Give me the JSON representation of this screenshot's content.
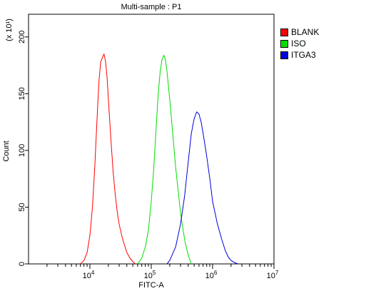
{
  "chart_data": {
    "type": "line",
    "title": "Multi-sample : P1",
    "xlabel": "FITC-A",
    "ylabel": "Count",
    "y_multiplier": "(x 10¹)",
    "x_scale": "log",
    "xlim": [
      1000,
      10000000
    ],
    "ylim": [
      0,
      220
    ],
    "x_ticks": [
      10000,
      100000,
      1000000,
      10000000
    ],
    "x_tick_labels": [
      {
        "base": "10",
        "exp": "4"
      },
      {
        "base": "10",
        "exp": "5"
      },
      {
        "base": "10",
        "exp": "6"
      },
      {
        "base": "10",
        "exp": "7"
      }
    ],
    "y_ticks": [
      0,
      50,
      100,
      150,
      200
    ],
    "y_tick_labels": [
      "0",
      "50",
      "100",
      "150",
      "200"
    ],
    "legend_position": "top-right",
    "series": [
      {
        "name": "BLANK",
        "color": "#ff0000",
        "x": [
          7000,
          8000,
          9000,
          10000,
          11000,
          12000,
          13000,
          14000,
          15000,
          16000,
          17000,
          18000,
          19000,
          20000,
          22000,
          24000,
          26000,
          28000,
          30000,
          33000,
          36000,
          40000,
          45000,
          50000,
          55000
        ],
        "y": [
          0,
          3,
          10,
          25,
          50,
          85,
          125,
          160,
          178,
          182,
          185,
          178,
          165,
          145,
          110,
          80,
          60,
          45,
          35,
          25,
          18,
          10,
          5,
          2,
          0
        ]
      },
      {
        "name": "ISO",
        "color": "#00dd00",
        "x": [
          60000,
          70000,
          80000,
          90000,
          100000,
          110000,
          120000,
          130000,
          140000,
          150000,
          160000,
          170000,
          180000,
          200000,
          220000,
          250000,
          280000,
          300000,
          330000,
          360000,
          400000,
          450000
        ],
        "y": [
          0,
          5,
          15,
          30,
          55,
          85,
          120,
          150,
          170,
          180,
          184,
          180,
          170,
          145,
          120,
          85,
          60,
          45,
          30,
          18,
          8,
          0
        ]
      },
      {
        "name": "ITGA3",
        "color": "#0000dd",
        "x": [
          180000,
          200000,
          250000,
          300000,
          350000,
          400000,
          450000,
          500000,
          550000,
          600000,
          650000,
          700000,
          800000,
          900000,
          1000000,
          1200000,
          1400000,
          1600000,
          1800000,
          2000000,
          2300000,
          2600000
        ],
        "y": [
          0,
          3,
          15,
          35,
          60,
          90,
          115,
          128,
          134,
          132,
          125,
          115,
          95,
          75,
          55,
          35,
          22,
          12,
          6,
          3,
          1,
          0
        ]
      }
    ]
  },
  "legend_icons": {
    "swatch": "square-swatch"
  }
}
